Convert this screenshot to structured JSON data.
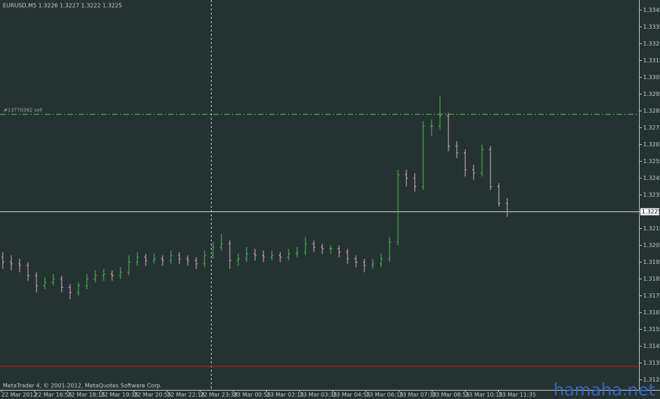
{
  "chart_data": {
    "type": "ohlc",
    "title": "EURUSD,M5 1.3226 1.3227 1.3222 1.3225",
    "x_labels": [
      "22 Mar 2012",
      "22 Mar 16:55",
      "22 Mar 18:15",
      "22 Mar 19:35",
      "22 Mar 20:55",
      "22 Mar 22:18",
      "22 Mar 23:38",
      "23 Mar 00:55",
      "23 Mar 02:15",
      "23 Mar 03:35",
      "23 Mar 04:55",
      "23 Mar 06:15",
      "23 Mar 07:35",
      "23 Mar 08:55",
      "23 Mar 10:15",
      "23 Mar 11:35"
    ],
    "ohlc": [
      [
        1.3198,
        1.3201,
        1.3191,
        1.3195
      ],
      [
        1.3195,
        1.3199,
        1.319,
        1.3194
      ],
      [
        1.3194,
        1.3197,
        1.3189,
        1.3193
      ],
      [
        1.3193,
        1.3195,
        1.3184,
        1.3187
      ],
      [
        1.3187,
        1.3189,
        1.3177,
        1.3181
      ],
      [
        1.3181,
        1.3186,
        1.3179,
        1.3183
      ],
      [
        1.3183,
        1.3188,
        1.3181,
        1.3185
      ],
      [
        1.3185,
        1.3187,
        1.3177,
        1.318
      ],
      [
        1.318,
        1.3182,
        1.3173,
        1.3177
      ],
      [
        1.3177,
        1.3183,
        1.3175,
        1.3181
      ],
      [
        1.3181,
        1.3188,
        1.3179,
        1.3185
      ],
      [
        1.3185,
        1.319,
        1.3183,
        1.3187
      ],
      [
        1.3187,
        1.3191,
        1.3184,
        1.3188
      ],
      [
        1.3188,
        1.319,
        1.3184,
        1.3187
      ],
      [
        1.3187,
        1.3192,
        1.3185,
        1.3189
      ],
      [
        1.3189,
        1.3199,
        1.3187,
        1.3195
      ],
      [
        1.3195,
        1.3201,
        1.3193,
        1.3198
      ],
      [
        1.3198,
        1.32,
        1.3193,
        1.3196
      ],
      [
        1.3196,
        1.32,
        1.3194,
        1.3197
      ],
      [
        1.3197,
        1.3199,
        1.3193,
        1.3196
      ],
      [
        1.3196,
        1.3202,
        1.3194,
        1.3199
      ],
      [
        1.3199,
        1.3201,
        1.3194,
        1.3197
      ],
      [
        1.3197,
        1.3199,
        1.3193,
        1.3196
      ],
      [
        1.3196,
        1.3198,
        1.3191,
        1.3194
      ],
      [
        1.3194,
        1.3202,
        1.3192,
        1.3199
      ],
      [
        1.3199,
        1.3207,
        1.3197,
        1.3204
      ],
      [
        1.3204,
        1.3212,
        1.3202,
        1.3206
      ],
      [
        1.3206,
        1.3208,
        1.3191,
        1.3196
      ],
      [
        1.3196,
        1.32,
        1.3193,
        1.3197
      ],
      [
        1.3197,
        1.3204,
        1.3195,
        1.32
      ],
      [
        1.32,
        1.3203,
        1.3196,
        1.3199
      ],
      [
        1.3199,
        1.3202,
        1.3195,
        1.3198
      ],
      [
        1.3198,
        1.3202,
        1.3196,
        1.3199
      ],
      [
        1.3199,
        1.3201,
        1.3195,
        1.3198
      ],
      [
        1.3198,
        1.3203,
        1.3196,
        1.32
      ],
      [
        1.32,
        1.3204,
        1.3198,
        1.3201
      ],
      [
        1.3201,
        1.321,
        1.3199,
        1.3206
      ],
      [
        1.3206,
        1.3208,
        1.3201,
        1.3204
      ],
      [
        1.3204,
        1.3206,
        1.32,
        1.3203
      ],
      [
        1.3203,
        1.3205,
        1.32,
        1.3203
      ],
      [
        1.3203,
        1.3205,
        1.3198,
        1.3201
      ],
      [
        1.3201,
        1.3203,
        1.3194,
        1.3197
      ],
      [
        1.3197,
        1.3199,
        1.3192,
        1.3195
      ],
      [
        1.3195,
        1.3197,
        1.3189,
        1.3193
      ],
      [
        1.3193,
        1.3197,
        1.3191,
        1.3194
      ],
      [
        1.3194,
        1.32,
        1.3192,
        1.3197
      ],
      [
        1.3197,
        1.321,
        1.3195,
        1.3207
      ],
      [
        1.3207,
        1.325,
        1.3205,
        1.3247
      ],
      [
        1.3247,
        1.325,
        1.324,
        1.3245
      ],
      [
        1.3245,
        1.3248,
        1.3237,
        1.324
      ],
      [
        1.324,
        1.3279,
        1.3238,
        1.3276
      ],
      [
        1.3276,
        1.328,
        1.327,
        1.3276
      ],
      [
        1.3276,
        1.3294,
        1.3274,
        1.3282
      ],
      [
        1.3282,
        1.3284,
        1.3261,
        1.3264
      ],
      [
        1.3264,
        1.3267,
        1.3257,
        1.326
      ],
      [
        1.326,
        1.3262,
        1.3246,
        1.325
      ],
      [
        1.325,
        1.3253,
        1.3244,
        1.3248
      ],
      [
        1.3248,
        1.3265,
        1.3246,
        1.3262
      ],
      [
        1.3262,
        1.3264,
        1.3238,
        1.324
      ],
      [
        1.324,
        1.3242,
        1.3228,
        1.323
      ],
      [
        1.323,
        1.3233,
        1.3222,
        1.3225
      ]
    ],
    "up_color": "#4cc44c",
    "down_color": "#e0b4b4",
    "ylim": [
      1.3119,
      1.3351
    ],
    "yticks": [
      1.3345,
      1.3335,
      1.3325,
      1.3315,
      1.3305,
      1.3295,
      1.3285,
      1.3275,
      1.3265,
      1.3255,
      1.3245,
      1.3235,
      1.3225,
      1.3215,
      1.3205,
      1.3195,
      1.3185,
      1.3175,
      1.3165,
      1.3155,
      1.3145,
      1.3135,
      1.3125
    ],
    "current_price": 1.3225,
    "order": {
      "label": "#13770382 sell",
      "price": 1.3283,
      "color": "#5fbf5f"
    },
    "red_line": {
      "price": 1.3133,
      "color": "#b01818"
    },
    "copyright": "MetaTrader 4, © 2001-2012, MetaQuotes Software Corp.",
    "watermark": "hamaha.net"
  }
}
